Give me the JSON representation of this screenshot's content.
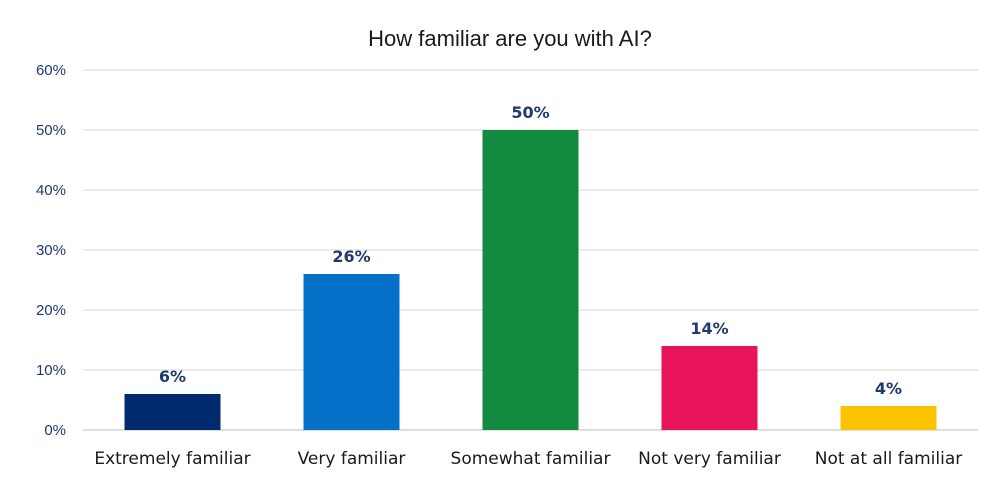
{
  "chart_data": {
    "type": "bar",
    "title": "How familiar are you with AI?",
    "xlabel": "",
    "ylabel": "",
    "categories": [
      "Extremely familiar",
      "Very familiar",
      "Somewhat familiar",
      "Not very familiar",
      "Not at all familiar"
    ],
    "values": [
      6,
      26,
      50,
      14,
      4
    ],
    "data_labels": [
      "6%",
      "26%",
      "50%",
      "14%",
      "4%"
    ],
    "colors": [
      "#002a6e",
      "#0570c8",
      "#128a3f",
      "#e8135a",
      "#fcc400"
    ],
    "ylim": [
      0,
      60
    ],
    "yticks": [
      0,
      10,
      20,
      30,
      40,
      50,
      60
    ],
    "ytick_labels": [
      "0%",
      "10%",
      "20%",
      "30%",
      "40%",
      "50%",
      "60%"
    ],
    "grid": true,
    "legend": "none"
  }
}
